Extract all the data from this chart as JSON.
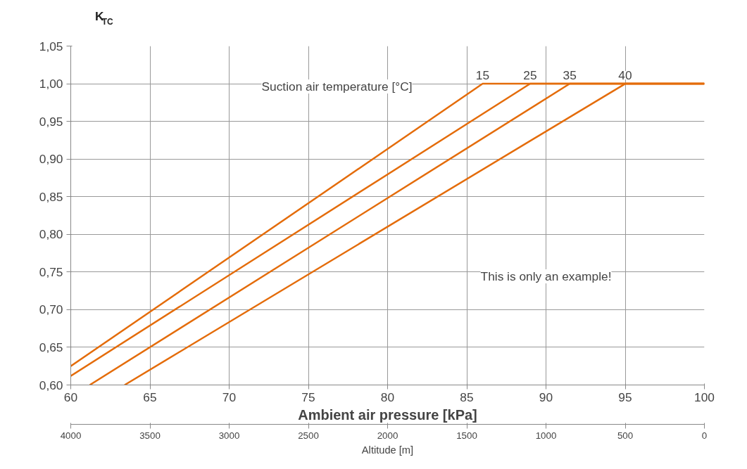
{
  "chart_data": {
    "type": "line",
    "ylabel": "K$_{TC}$",
    "xlabel": "Ambient air pressure [kPa]",
    "x2label": "Altitude [m]",
    "annotations": [
      "Suction air temperature [°C]",
      "This is only an example!"
    ],
    "series": [
      {
        "name": "15",
        "color": "#e46c0a",
        "x": [
          60,
          86.0,
          100
        ],
        "values": [
          0.625,
          1.0,
          1.0
        ]
      },
      {
        "name": "25",
        "color": "#e46c0a",
        "x": [
          60,
          89.0,
          100
        ],
        "values": [
          0.612,
          1.0,
          1.0
        ]
      },
      {
        "name": "35",
        "color": "#e46c0a",
        "x": [
          61.2,
          91.5,
          100
        ],
        "values": [
          0.6,
          1.0,
          1.0
        ]
      },
      {
        "name": "40",
        "color": "#e46c0a",
        "x": [
          63.4,
          95.0,
          100
        ],
        "values": [
          0.6,
          1.0,
          1.0
        ]
      }
    ],
    "xlim": [
      60,
      100
    ],
    "xticks": [
      60,
      65,
      70,
      75,
      80,
      85,
      90,
      95,
      100
    ],
    "x2lim": [
      4000,
      0
    ],
    "x2ticks": [
      4000,
      3500,
      3000,
      2500,
      2000,
      1500,
      1000,
      500,
      0
    ],
    "ylim": [
      0.6,
      1.05
    ],
    "yticks": [
      {
        "value": 0.6,
        "label": "0,60"
      },
      {
        "value": 0.65,
        "label": "0,65"
      },
      {
        "value": 0.7,
        "label": "0,70"
      },
      {
        "value": 0.75,
        "label": "0,75"
      },
      {
        "value": 0.8,
        "label": "0,80"
      },
      {
        "value": 0.85,
        "label": "0,85"
      },
      {
        "value": 0.9,
        "label": "0,90"
      },
      {
        "value": 0.95,
        "label": "0,95"
      },
      {
        "value": 1.0,
        "label": "1,00"
      },
      {
        "value": 1.05,
        "label": "1,05"
      }
    ],
    "grid": true
  }
}
